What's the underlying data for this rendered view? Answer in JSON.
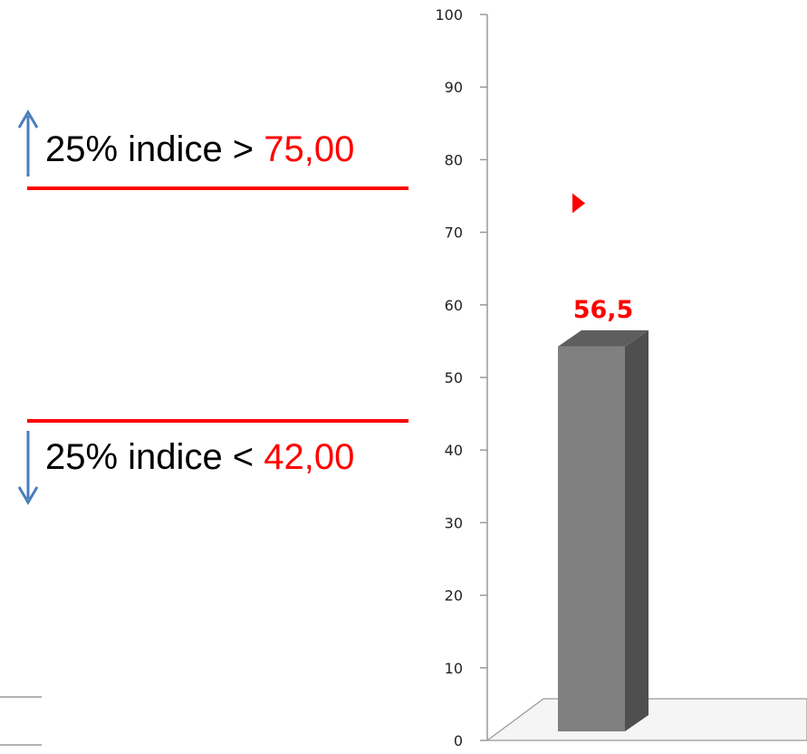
{
  "colors": {
    "accent": "#ff0000",
    "arrow": "#4a7ebb",
    "bar_front": "#808080",
    "bar_side": "#4f4f4f",
    "bar_top": "#5e5e5e",
    "axis": "#999999"
  },
  "icons": {
    "upper_arrow": "arrow-up-icon",
    "lower_arrow": "arrow-down-icon",
    "marker": "triangle-right-icon"
  },
  "annotations": {
    "upper": {
      "prefix": "25% indice > ",
      "value": "75,00"
    },
    "lower": {
      "prefix": "25% indice < ",
      "value": "42,00"
    }
  },
  "chart_data": {
    "type": "bar",
    "categories": [
      ""
    ],
    "values": [
      56.5
    ],
    "data_labels": [
      "56,5"
    ],
    "title": "",
    "xlabel": "",
    "ylabel": "",
    "ylim": [
      0,
      100
    ],
    "yticks": [
      "0",
      "10",
      "20",
      "30",
      "40",
      "50",
      "60",
      "70",
      "80",
      "90",
      "100"
    ],
    "thresholds": {
      "upper": 75,
      "lower": 42
    },
    "marker_value": 74,
    "grid": false,
    "legend": "none",
    "style": "3d"
  }
}
